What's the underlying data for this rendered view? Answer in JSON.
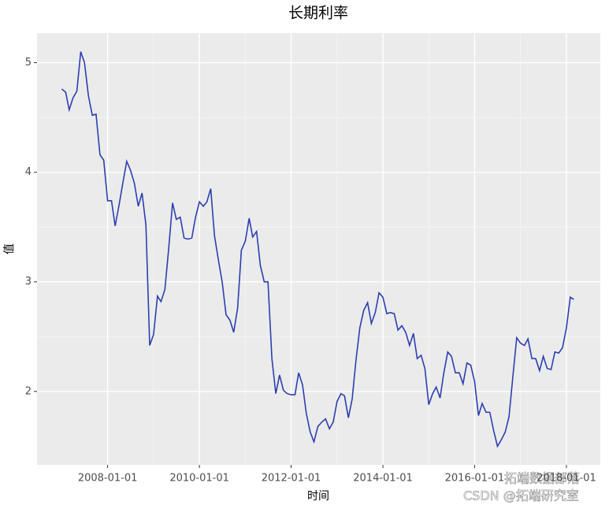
{
  "chart_data": {
    "type": "line",
    "title": "长期利率",
    "x_label": "时间",
    "y_label": "值",
    "watermarks": [
      "拓端数据部落",
      "CSDN @拓端研究室"
    ],
    "x": [
      "2007-01-01",
      "2007-02-01",
      "2007-03-01",
      "2007-04-01",
      "2007-05-01",
      "2007-06-01",
      "2007-07-01",
      "2007-08-01",
      "2007-09-01",
      "2007-10-01",
      "2007-11-01",
      "2007-12-01",
      "2008-01-01",
      "2008-02-01",
      "2008-03-01",
      "2008-04-01",
      "2008-05-01",
      "2008-06-01",
      "2008-07-01",
      "2008-08-01",
      "2008-09-01",
      "2008-10-01",
      "2008-11-01",
      "2008-12-01",
      "2009-01-01",
      "2009-02-01",
      "2009-03-01",
      "2009-04-01",
      "2009-05-01",
      "2009-06-01",
      "2009-07-01",
      "2009-08-01",
      "2009-09-01",
      "2009-10-01",
      "2009-11-01",
      "2009-12-01",
      "2010-01-01",
      "2010-02-01",
      "2010-03-01",
      "2010-04-01",
      "2010-05-01",
      "2010-06-01",
      "2010-07-01",
      "2010-08-01",
      "2010-09-01",
      "2010-10-01",
      "2010-11-01",
      "2010-12-01",
      "2011-01-01",
      "2011-02-01",
      "2011-03-01",
      "2011-04-01",
      "2011-05-01",
      "2011-06-01",
      "2011-07-01",
      "2011-08-01",
      "2011-09-01",
      "2011-10-01",
      "2011-11-01",
      "2011-12-01",
      "2012-01-01",
      "2012-02-01",
      "2012-03-01",
      "2012-04-01",
      "2012-05-01",
      "2012-06-01",
      "2012-07-01",
      "2012-08-01",
      "2012-09-01",
      "2012-10-01",
      "2012-11-01",
      "2012-12-01",
      "2013-01-01",
      "2013-02-01",
      "2013-03-01",
      "2013-04-01",
      "2013-05-01",
      "2013-06-01",
      "2013-07-01",
      "2013-08-01",
      "2013-09-01",
      "2013-10-01",
      "2013-11-01",
      "2013-12-01",
      "2014-01-01",
      "2014-02-01",
      "2014-03-01",
      "2014-04-01",
      "2014-05-01",
      "2014-06-01",
      "2014-07-01",
      "2014-08-01",
      "2014-09-01",
      "2014-10-01",
      "2014-11-01",
      "2014-12-01",
      "2015-01-01",
      "2015-02-01",
      "2015-03-01",
      "2015-04-01",
      "2015-05-01",
      "2015-06-01",
      "2015-07-01",
      "2015-08-01",
      "2015-09-01",
      "2015-10-01",
      "2015-11-01",
      "2015-12-01",
      "2016-01-01",
      "2016-02-01",
      "2016-03-01",
      "2016-04-01",
      "2016-05-01",
      "2016-06-01",
      "2016-07-01",
      "2016-08-01",
      "2016-09-01",
      "2016-10-01",
      "2016-11-01",
      "2016-12-01",
      "2017-01-01",
      "2017-02-01",
      "2017-03-01",
      "2017-04-01",
      "2017-05-01",
      "2017-06-01",
      "2017-07-01",
      "2017-08-01",
      "2017-09-01",
      "2017-10-01",
      "2017-11-01",
      "2017-12-01",
      "2018-01-01",
      "2018-02-01",
      "2018-03-01"
    ],
    "series": [
      {
        "name": "长期利率",
        "color": "#2b3fb0",
        "values": [
          4.76,
          4.73,
          4.57,
          4.68,
          4.74,
          5.1,
          5.0,
          4.7,
          4.52,
          4.53,
          4.16,
          4.11,
          3.74,
          3.74,
          3.51,
          3.7,
          3.9,
          4.1,
          4.02,
          3.9,
          3.69,
          3.81,
          3.52,
          2.42,
          2.52,
          2.87,
          2.82,
          2.93,
          3.3,
          3.72,
          3.57,
          3.59,
          3.4,
          3.39,
          3.4,
          3.59,
          3.73,
          3.69,
          3.73,
          3.85,
          3.42,
          3.2,
          3.0,
          2.7,
          2.65,
          2.54,
          2.76,
          3.29,
          3.37,
          3.58,
          3.41,
          3.46,
          3.15,
          3.0,
          3.0,
          2.3,
          1.98,
          2.15,
          2.01,
          1.98,
          1.97,
          1.97,
          2.17,
          2.06,
          1.8,
          1.63,
          1.54,
          1.68,
          1.72,
          1.75,
          1.66,
          1.72,
          1.91,
          1.98,
          1.96,
          1.76,
          1.93,
          2.29,
          2.58,
          2.74,
          2.81,
          2.62,
          2.72,
          2.9,
          2.86,
          2.71,
          2.72,
          2.71,
          2.56,
          2.6,
          2.54,
          2.42,
          2.53,
          2.3,
          2.33,
          2.21,
          1.88,
          1.98,
          2.04,
          1.94,
          2.17,
          2.36,
          2.32,
          2.17,
          2.17,
          2.07,
          2.26,
          2.24,
          2.09,
          1.78,
          1.89,
          1.81,
          1.81,
          1.64,
          1.5,
          1.56,
          1.63,
          1.77,
          2.14,
          2.49,
          2.44,
          2.42,
          2.48,
          2.3,
          2.3,
          2.19,
          2.32,
          2.21,
          2.2,
          2.36,
          2.35,
          2.4,
          2.58,
          2.86,
          2.84
        ]
      }
    ],
    "xlim": [
      "2006-06-18",
      "2018-09-28"
    ],
    "xticks": [
      "2008-01-01",
      "2010-01-01",
      "2012-01-01",
      "2014-01-01",
      "2016-01-01",
      "2018-01-01"
    ],
    "ylim": [
      1.33,
      5.27
    ],
    "yticks": [
      2,
      3,
      4,
      5
    ],
    "grid": true
  }
}
